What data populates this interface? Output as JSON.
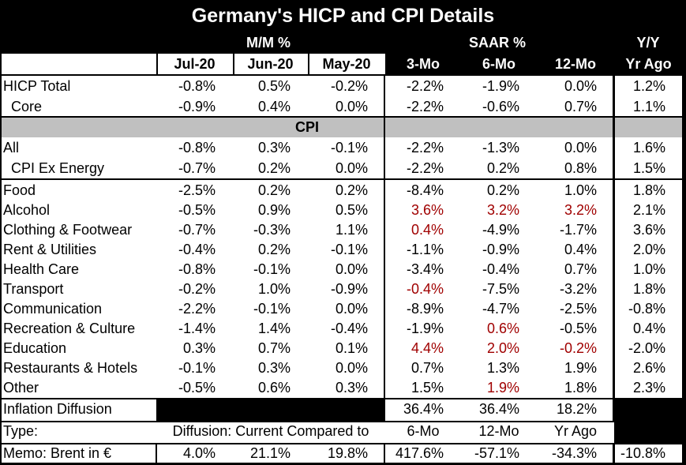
{
  "title": "Germany's HICP and CPI Details",
  "headers": {
    "mm_group": "M/M %",
    "saar_group": "SAAR %",
    "yy_group": "Y/Y",
    "columns": [
      "Jul-20",
      "Jun-20",
      "May-20",
      "3-Mo",
      "6-Mo",
      "12-Mo",
      "Yr Ago"
    ]
  },
  "hicp": [
    {
      "label": "HICP Total",
      "values": [
        "-0.8%",
        "0.5%",
        "-0.2%",
        "-2.2%",
        "-1.9%",
        "0.0%",
        "1.2%"
      ],
      "red": [
        false,
        false,
        false,
        false,
        false,
        false,
        false
      ]
    },
    {
      "label": "Core",
      "values": [
        "-0.9%",
        "0.4%",
        "0.0%",
        "-2.2%",
        "-0.6%",
        "0.7%",
        "1.1%"
      ],
      "red": [
        false,
        false,
        false,
        false,
        false,
        false,
        false
      ]
    }
  ],
  "cpi_section_label": "CPI",
  "cpi_summary": [
    {
      "label": "All",
      "values": [
        "-0.8%",
        "0.3%",
        "-0.1%",
        "-2.2%",
        "-1.3%",
        "0.0%",
        "1.6%"
      ],
      "red": [
        false,
        false,
        false,
        false,
        false,
        false,
        false
      ]
    },
    {
      "label": "CPI Ex Energy",
      "values": [
        "-0.7%",
        "0.2%",
        "0.0%",
        "-2.2%",
        "0.2%",
        "0.8%",
        "1.5%"
      ],
      "red": [
        false,
        false,
        false,
        false,
        false,
        false,
        false
      ]
    }
  ],
  "components": [
    {
      "label": "Food",
      "values": [
        "-2.5%",
        "0.2%",
        "0.2%",
        "-8.4%",
        "0.2%",
        "1.0%",
        "1.8%"
      ],
      "red": [
        false,
        false,
        false,
        false,
        false,
        false,
        false
      ]
    },
    {
      "label": "Alcohol",
      "values": [
        "-0.5%",
        "0.9%",
        "0.5%",
        "3.6%",
        "3.2%",
        "3.2%",
        "2.1%"
      ],
      "red": [
        false,
        false,
        false,
        true,
        true,
        true,
        false
      ]
    },
    {
      "label": "Clothing & Footwear",
      "values": [
        "-0.7%",
        "-0.3%",
        "1.1%",
        "0.4%",
        "-4.9%",
        "-1.7%",
        "3.6%"
      ],
      "red": [
        false,
        false,
        false,
        true,
        false,
        false,
        false
      ]
    },
    {
      "label": "Rent & Utilities",
      "values": [
        "-0.4%",
        "0.2%",
        "-0.1%",
        "-1.1%",
        "-0.9%",
        "0.4%",
        "2.0%"
      ],
      "red": [
        false,
        false,
        false,
        false,
        false,
        false,
        false
      ]
    },
    {
      "label": "Health Care",
      "values": [
        "-0.8%",
        "-0.1%",
        "0.0%",
        "-3.4%",
        "-0.4%",
        "0.7%",
        "1.0%"
      ],
      "red": [
        false,
        false,
        false,
        false,
        false,
        false,
        false
      ]
    },
    {
      "label": "Transport",
      "values": [
        "-0.2%",
        "1.0%",
        "-0.9%",
        "-0.4%",
        "-7.5%",
        "-3.2%",
        "1.8%"
      ],
      "red": [
        false,
        false,
        false,
        true,
        false,
        false,
        false
      ]
    },
    {
      "label": "Communication",
      "values": [
        "-2.2%",
        "-0.1%",
        "0.0%",
        "-8.9%",
        "-4.7%",
        "-2.5%",
        "-0.8%"
      ],
      "red": [
        false,
        false,
        false,
        false,
        false,
        false,
        false
      ]
    },
    {
      "label": "Recreation & Culture",
      "values": [
        "-1.4%",
        "1.4%",
        "-0.4%",
        "-1.9%",
        "0.6%",
        "-0.5%",
        "0.4%"
      ],
      "red": [
        false,
        false,
        false,
        false,
        true,
        false,
        false
      ]
    },
    {
      "label": "Education",
      "values": [
        "0.3%",
        "0.7%",
        "0.1%",
        "4.4%",
        "2.0%",
        "-0.2%",
        "-2.0%"
      ],
      "red": [
        false,
        false,
        false,
        true,
        true,
        true,
        false
      ]
    },
    {
      "label": "Restaurants & Hotels",
      "values": [
        "-0.1%",
        "0.3%",
        "0.0%",
        "0.7%",
        "1.3%",
        "1.9%",
        "2.6%"
      ],
      "red": [
        false,
        false,
        false,
        false,
        false,
        false,
        false
      ]
    },
    {
      "label": "Other",
      "values": [
        "-0.5%",
        "0.6%",
        "0.3%",
        "1.5%",
        "1.9%",
        "1.8%",
        "2.3%"
      ],
      "red": [
        false,
        false,
        false,
        false,
        true,
        false,
        false
      ]
    }
  ],
  "diffusion": {
    "label": "Inflation Diffusion",
    "values": [
      "36.4%",
      "36.4%",
      "18.2%"
    ]
  },
  "type_row": {
    "label": "Type:",
    "description": "Diffusion: Current Compared to",
    "values": [
      "6-Mo",
      "12-Mo",
      "Yr Ago"
    ]
  },
  "memo": {
    "label": "Memo: Brent in €",
    "values": [
      "4.0%",
      "21.1%",
      "19.8%",
      "417.6%",
      "-57.1%",
      "-34.3%",
      "-10.8%"
    ]
  },
  "colors": {
    "red_text": "#a00000",
    "header_bg": "#000000",
    "body_bg": "#ffffff",
    "section_band": "#c0c0c0"
  }
}
